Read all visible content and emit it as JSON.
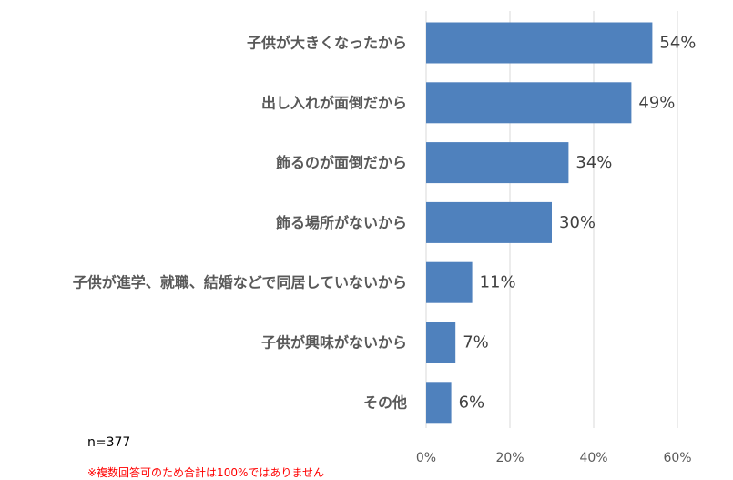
{
  "chart_data": {
    "type": "bar",
    "orientation": "horizontal",
    "categories": [
      "子供が大きくなったから",
      "出し入れが面倒だから",
      "飾るのが面倒だから",
      "飾る場所がないから",
      "子供が進学、就職、結婚などで同居していないから",
      "子供が興味がないから",
      "その他"
    ],
    "values": [
      54,
      49,
      34,
      30,
      11,
      7,
      6
    ],
    "value_labels": [
      "54%",
      "49%",
      "34%",
      "30%",
      "11%",
      "7%",
      "6%"
    ],
    "xlim": [
      0,
      60
    ],
    "xticks": [
      0,
      20,
      40,
      60
    ],
    "xtick_labels": [
      "0%",
      "20%",
      "40%",
      "60%"
    ],
    "grid": true,
    "bar_color": "#4f81bd",
    "title": "",
    "xlabel": "",
    "ylabel": ""
  },
  "notes": {
    "sample_size": "n=377",
    "footnote": "※複数回答可のため合計は100%ではありません"
  }
}
